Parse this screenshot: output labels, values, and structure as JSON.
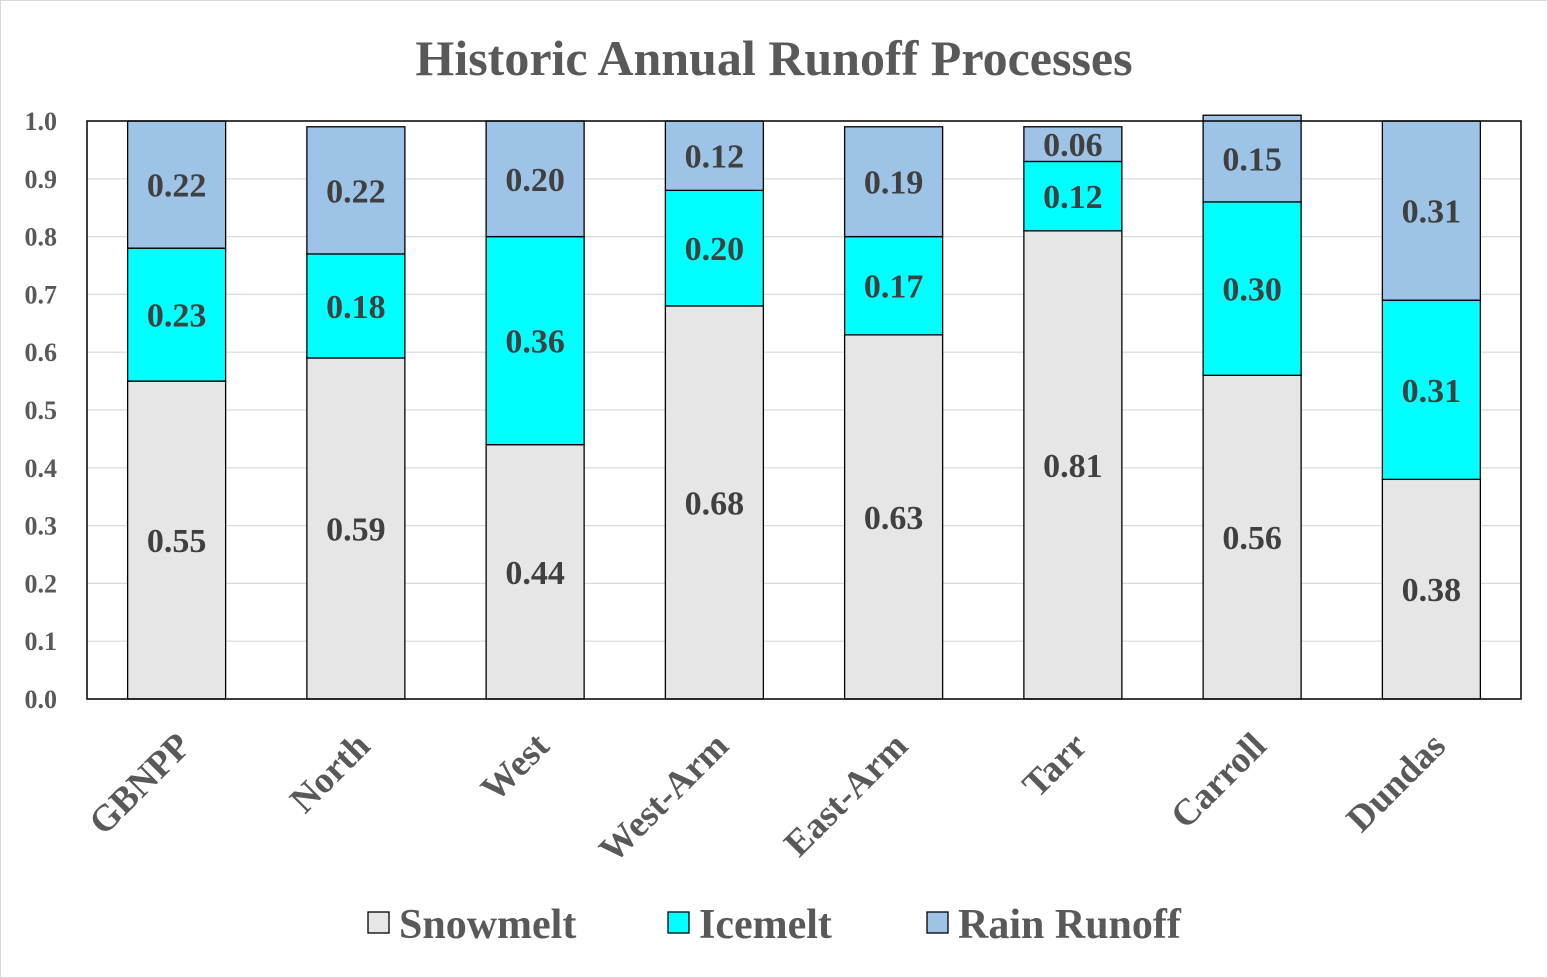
{
  "chart_data": {
    "type": "bar",
    "stacked": true,
    "title": "Historic Annual Runoff Processes",
    "xlabel": "",
    "ylabel": "",
    "ylim": [
      0,
      1.0
    ],
    "yticks": [
      "0.0",
      "0.1",
      "0.2",
      "0.3",
      "0.4",
      "0.5",
      "0.6",
      "0.7",
      "0.8",
      "0.9",
      "1.0"
    ],
    "grid": true,
    "legend_position": "bottom",
    "categories": [
      "GBNPP",
      "North",
      "West",
      "West-Arm",
      "East-Arm",
      "Tarr",
      "Carroll",
      "Dundas"
    ],
    "series": [
      {
        "name": "Snowmelt",
        "color": "#e7e6e6",
        "values": [
          0.55,
          0.59,
          0.44,
          0.68,
          0.63,
          0.81,
          0.56,
          0.38
        ],
        "labels": [
          "0.55",
          "0.59",
          "0.44",
          "0.68",
          "0.63",
          "0.81",
          "0.56",
          "0.38"
        ]
      },
      {
        "name": "Icemelt",
        "color": "#00ffff",
        "values": [
          0.23,
          0.18,
          0.36,
          0.2,
          0.17,
          0.12,
          0.3,
          0.31
        ],
        "labels": [
          "0.23",
          "0.18",
          "0.36",
          "0.20",
          "0.17",
          "0.12",
          "0.30",
          "0.31"
        ]
      },
      {
        "name": "Rain Runoff",
        "color": "#9dc3e6",
        "values": [
          0.22,
          0.22,
          0.2,
          0.12,
          0.19,
          0.06,
          0.15,
          0.31
        ],
        "labels": [
          "0.22",
          "0.22",
          "0.20",
          "0.12",
          "0.19",
          "0.06",
          "0.15",
          "0.31"
        ]
      }
    ]
  }
}
